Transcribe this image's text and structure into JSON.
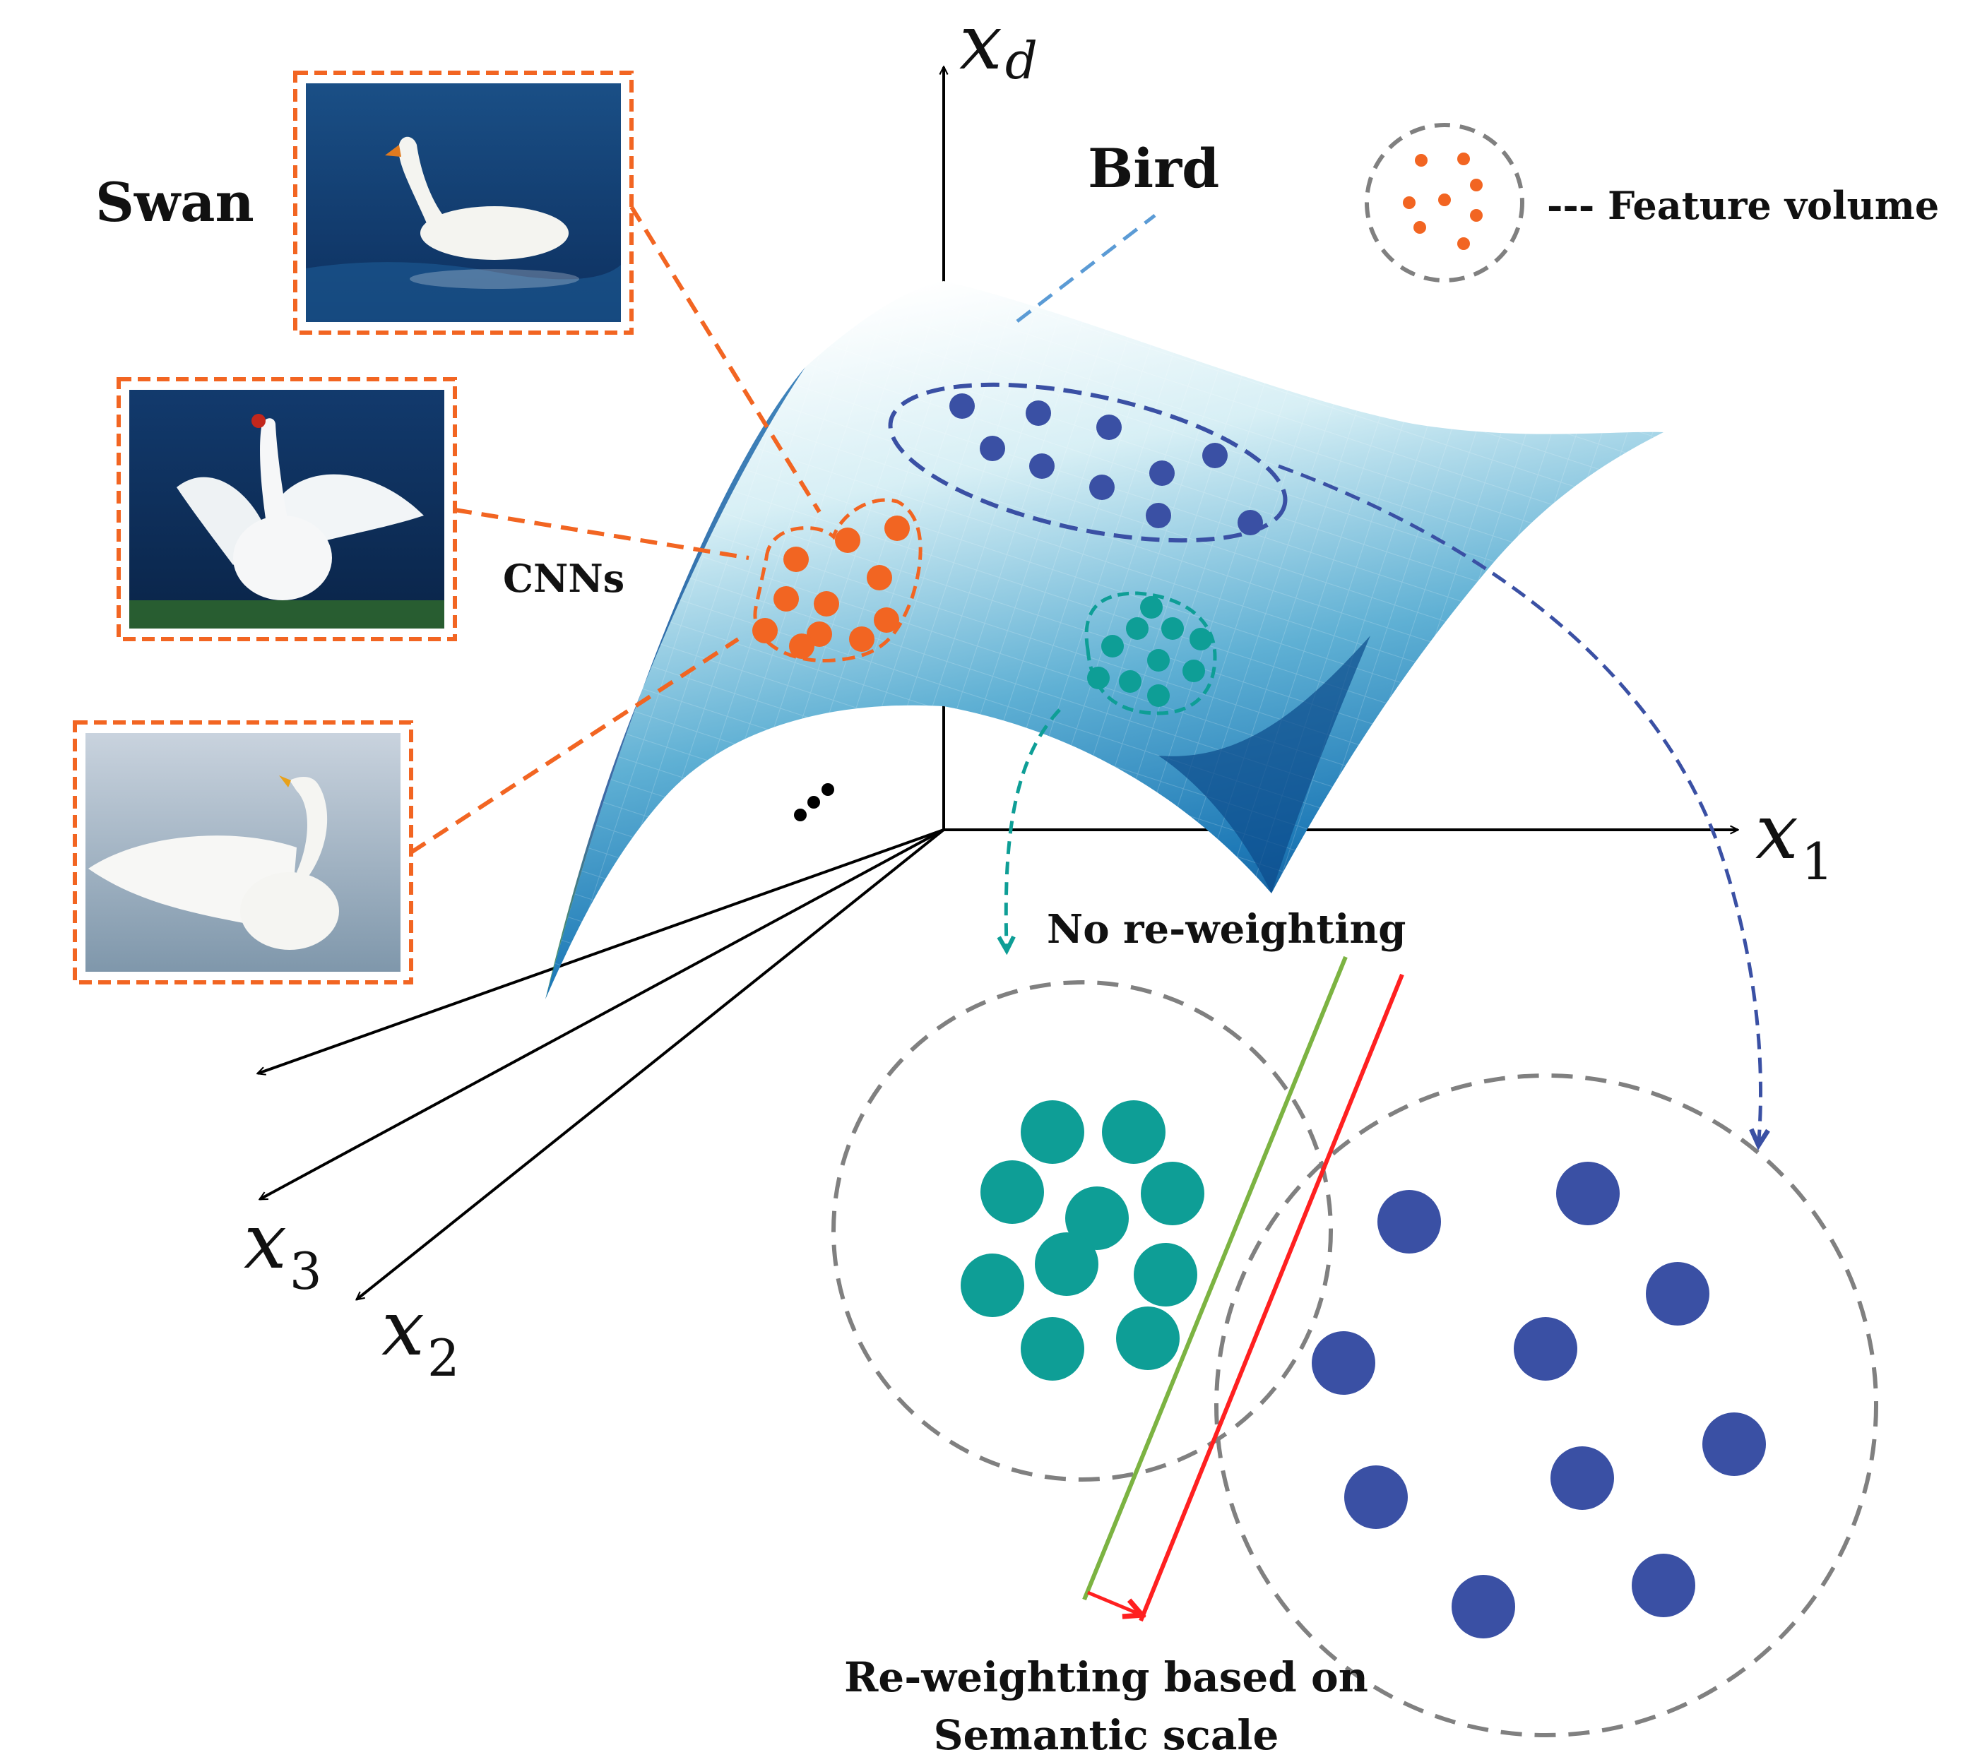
{
  "labels": {
    "swan": "Swan",
    "bird": "Bird",
    "cnns": "CNNs",
    "feature_volume": "--- Feature volume",
    "no_reweighting": "No re-weighting",
    "reweighting_line1": "Re-weighting based on",
    "reweighting_line2": "Semantic scale",
    "ellipsis": "…"
  },
  "axes": {
    "xd": {
      "var": "x",
      "sub": "d"
    },
    "x1": {
      "var": "x",
      "sub": "1"
    },
    "x2": {
      "var": "x",
      "sub": "2"
    },
    "x3": {
      "var": "x",
      "sub": "3"
    }
  },
  "images": [
    {
      "name": "swan-swimming-photo",
      "subject": "swan"
    },
    {
      "name": "swan-spreading-wings-photo",
      "subject": "swan"
    },
    {
      "name": "swan-flapping-photo",
      "subject": "swan"
    }
  ],
  "colors": {
    "swan_feature": "#f26522",
    "bird_feature": "#3a50a4",
    "teal_feature": "#0e9e96",
    "volume_ring": "#808080",
    "boundary_no_reweight": "#7cb342",
    "boundary_reweight": "#ff2020",
    "surface_light": "#f2fbfd",
    "surface_dark": "#0a4f8f"
  }
}
